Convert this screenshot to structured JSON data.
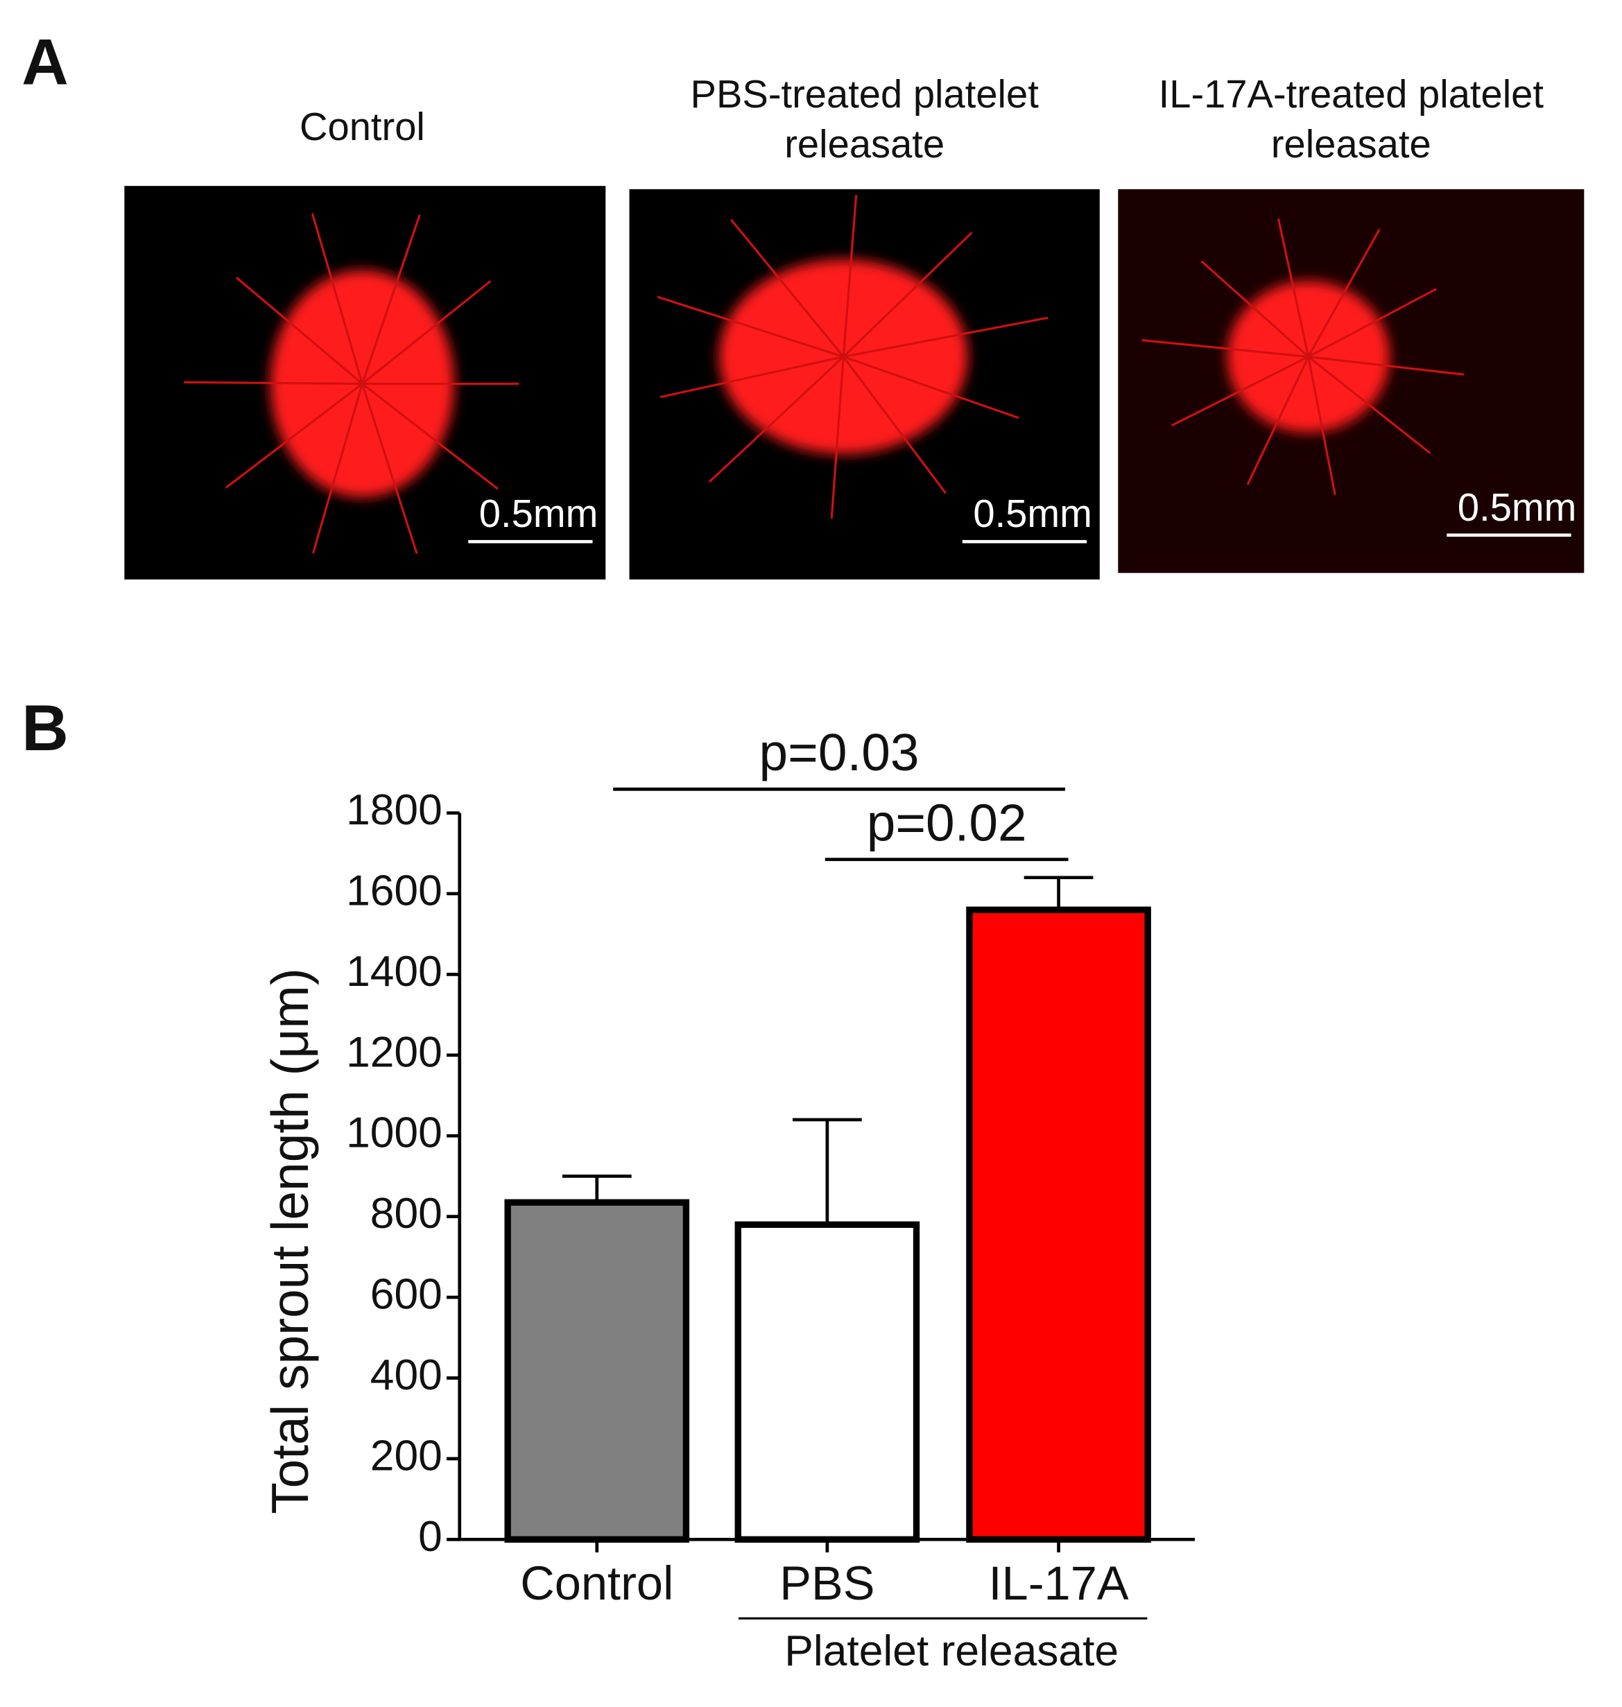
{
  "panel_a": {
    "label": "A",
    "images": [
      {
        "title": [
          "Control"
        ],
        "scale": "0.5mm"
      },
      {
        "title": [
          "PBS-treated platelet",
          "releasate"
        ],
        "scale": "0.5mm"
      },
      {
        "title": [
          "IL-17A-treated platelet",
          "releasate"
        ],
        "scale": "0.5mm"
      }
    ]
  },
  "chart_data": {
    "type": "bar",
    "panel_label": "B",
    "y_label": "Total sprout length (μm)",
    "categories": [
      "Control",
      "PBS",
      "IL-17A"
    ],
    "values": [
      835,
      780,
      1560
    ],
    "errors": [
      65,
      260,
      80
    ],
    "colors": [
      "#808080",
      "#ffffff",
      "#ff0000"
    ],
    "ylim": [
      0,
      1800
    ],
    "yticks": [
      0,
      200,
      400,
      600,
      800,
      1000,
      1200,
      1400,
      1600,
      1800
    ],
    "group_label": "Platelet releasate",
    "annotations": [
      "p=0.03",
      "p=0.02"
    ]
  }
}
